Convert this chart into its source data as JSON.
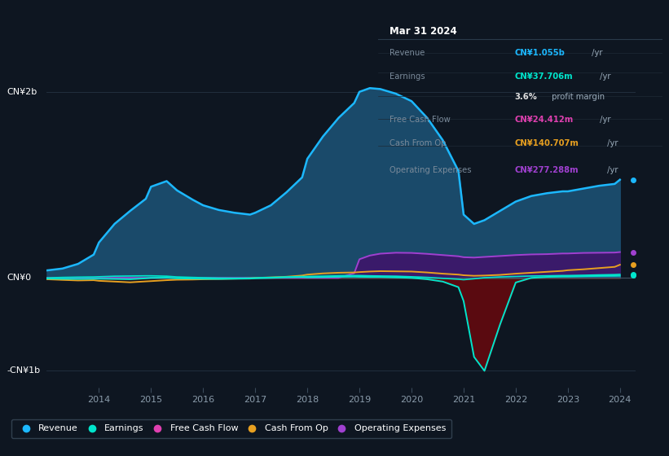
{
  "bg_color": "#0e1621",
  "title_box_bg": "#050d14",
  "title_box_border": "#3a4a5a",
  "title_box": {
    "date": "Mar 31 2024",
    "rows": [
      {
        "label": "Revenue",
        "value": "CN¥1.055b",
        "value_color": "#1cb8ff",
        "suffix": " /yr"
      },
      {
        "label": "Earnings",
        "value": "CN¥37.706m",
        "value_color": "#00e5cc",
        "suffix": " /yr"
      },
      {
        "label": "",
        "value": "3.6%",
        "value_color": "#e0e0e0",
        "suffix": " profit margin"
      },
      {
        "label": "Free Cash Flow",
        "value": "CN¥24.412m",
        "value_color": "#e040b0",
        "suffix": " /yr"
      },
      {
        "label": "Cash From Op",
        "value": "CN¥140.707m",
        "value_color": "#e8a020",
        "suffix": " /yr"
      },
      {
        "label": "Operating Expenses",
        "value": "CN¥277.288m",
        "value_color": "#a040d0",
        "suffix": " /yr"
      }
    ]
  },
  "years": [
    2013.0,
    2013.3,
    2013.6,
    2013.9,
    2014.0,
    2014.3,
    2014.6,
    2014.9,
    2015.0,
    2015.3,
    2015.5,
    2015.8,
    2016.0,
    2016.3,
    2016.6,
    2016.9,
    2017.0,
    2017.3,
    2017.6,
    2017.9,
    2018.0,
    2018.3,
    2018.6,
    2018.9,
    2019.0,
    2019.2,
    2019.4,
    2019.7,
    2020.0,
    2020.3,
    2020.6,
    2020.9,
    2021.0,
    2021.2,
    2021.4,
    2021.7,
    2022.0,
    2022.3,
    2022.6,
    2022.9,
    2023.0,
    2023.3,
    2023.6,
    2023.9,
    2024.0
  ],
  "revenue": [
    0.08,
    0.1,
    0.15,
    0.25,
    0.38,
    0.58,
    0.72,
    0.85,
    0.98,
    1.04,
    0.94,
    0.84,
    0.78,
    0.73,
    0.7,
    0.68,
    0.7,
    0.78,
    0.92,
    1.08,
    1.28,
    1.52,
    1.72,
    1.88,
    2.0,
    2.04,
    2.03,
    1.98,
    1.9,
    1.72,
    1.48,
    1.15,
    0.68,
    0.58,
    0.62,
    0.72,
    0.82,
    0.88,
    0.91,
    0.93,
    0.93,
    0.96,
    0.99,
    1.01,
    1.055
  ],
  "earnings": [
    0.0,
    0.005,
    0.008,
    0.01,
    0.012,
    0.018,
    0.02,
    0.022,
    0.022,
    0.018,
    0.01,
    0.005,
    0.002,
    -0.002,
    -0.003,
    -0.002,
    0.0,
    0.005,
    0.01,
    0.015,
    0.015,
    0.018,
    0.022,
    0.025,
    0.025,
    0.022,
    0.02,
    0.018,
    0.012,
    0.005,
    -0.005,
    -0.015,
    -0.02,
    -0.01,
    0.002,
    0.01,
    0.015,
    0.02,
    0.022,
    0.025,
    0.025,
    0.028,
    0.032,
    0.035,
    0.038
  ],
  "free_cash_flow": [
    -0.008,
    -0.01,
    -0.012,
    -0.01,
    -0.01,
    -0.012,
    -0.015,
    -0.005,
    0.0,
    0.002,
    -0.005,
    -0.008,
    -0.01,
    -0.012,
    -0.01,
    -0.008,
    -0.005,
    0.0,
    0.005,
    0.008,
    0.005,
    0.008,
    0.012,
    0.015,
    0.012,
    0.01,
    0.01,
    0.005,
    0.0,
    -0.015,
    -0.04,
    -0.1,
    -0.25,
    -0.85,
    -1.0,
    -0.5,
    -0.05,
    0.0,
    0.01,
    0.015,
    0.015,
    0.018,
    0.02,
    0.022,
    0.024
  ],
  "cash_from_op": [
    -0.015,
    -0.022,
    -0.028,
    -0.025,
    -0.032,
    -0.04,
    -0.048,
    -0.038,
    -0.035,
    -0.025,
    -0.02,
    -0.018,
    -0.015,
    -0.012,
    -0.008,
    -0.005,
    0.0,
    0.005,
    0.012,
    0.025,
    0.035,
    0.048,
    0.055,
    0.058,
    0.062,
    0.068,
    0.072,
    0.07,
    0.068,
    0.058,
    0.045,
    0.035,
    0.028,
    0.022,
    0.025,
    0.032,
    0.045,
    0.055,
    0.065,
    0.075,
    0.082,
    0.092,
    0.105,
    0.118,
    0.141
  ],
  "op_expenses": [
    0.0,
    0.0,
    0.0,
    0.0,
    0.0,
    0.0,
    0.0,
    0.0,
    0.0,
    0.0,
    0.0,
    0.0,
    0.0,
    0.0,
    0.0,
    0.0,
    0.0,
    0.0,
    0.0,
    0.0,
    0.0,
    0.0,
    0.0,
    0.05,
    0.2,
    0.24,
    0.26,
    0.27,
    0.268,
    0.258,
    0.245,
    0.232,
    0.222,
    0.218,
    0.225,
    0.235,
    0.245,
    0.252,
    0.255,
    0.262,
    0.262,
    0.268,
    0.27,
    0.272,
    0.277
  ],
  "revenue_color": "#1cb8ff",
  "revenue_fill": "#1a4a6a",
  "earnings_color": "#00e5cc",
  "fcf_line_color": "#00e5cc",
  "fcf_neg_fill": "#5a0a10",
  "cashop_color": "#e8a020",
  "opex_color": "#a040d0",
  "opex_fill": "#3a1a6a",
  "ylabel_2b": "CN¥2b",
  "ylabel_0": "CN¥0",
  "ylabel_neg1b": "-CN¥1b",
  "ylim": [
    -1.18,
    2.35
  ],
  "xlim": [
    2013.0,
    2024.3
  ],
  "xticks": [
    2014,
    2015,
    2016,
    2017,
    2018,
    2019,
    2020,
    2021,
    2022,
    2023,
    2024
  ],
  "hline_color": "#2a3a4a",
  "hline0_color": "#4a5a6a",
  "legend": [
    {
      "label": "Revenue",
      "color": "#1cb8ff"
    },
    {
      "label": "Earnings",
      "color": "#00e5cc"
    },
    {
      "label": "Free Cash Flow",
      "color": "#e040b0"
    },
    {
      "label": "Cash From Op",
      "color": "#e8a020"
    },
    {
      "label": "Operating Expenses",
      "color": "#a040d0"
    }
  ]
}
